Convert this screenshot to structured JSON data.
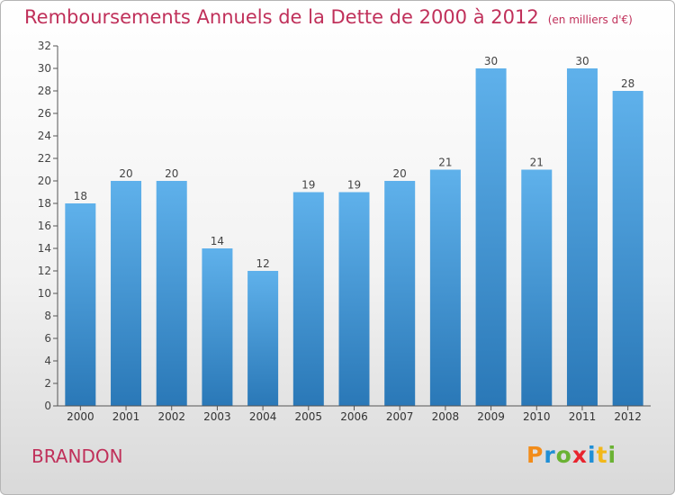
{
  "header": {
    "title": "Remboursements Annuels de la Dette de 2000 à 2012",
    "unit_note": "(en milliers d'€)"
  },
  "footer": {
    "commune": "BRANDON",
    "logo_text": "Proxiti"
  },
  "colors": {
    "title": "#c0305a",
    "bar_top": "#5fb1eb",
    "bar_bottom": "#2a78b7",
    "axis": "#555555"
  },
  "chart_data": {
    "type": "bar",
    "title": "Remboursements Annuels de la Dette de 2000 à 2012",
    "categories": [
      "2000",
      "2001",
      "2002",
      "2003",
      "2004",
      "2005",
      "2006",
      "2007",
      "2008",
      "2009",
      "2010",
      "2011",
      "2012"
    ],
    "values": [
      18,
      20,
      20,
      14,
      12,
      19,
      19,
      20,
      21,
      30,
      21,
      30,
      28
    ],
    "ylim": [
      0,
      32
    ],
    "yticks": [
      0,
      2,
      4,
      6,
      8,
      10,
      12,
      14,
      16,
      18,
      20,
      22,
      24,
      26,
      28,
      30,
      32
    ],
    "grid": false,
    "legend": "none",
    "data_labels": true
  }
}
